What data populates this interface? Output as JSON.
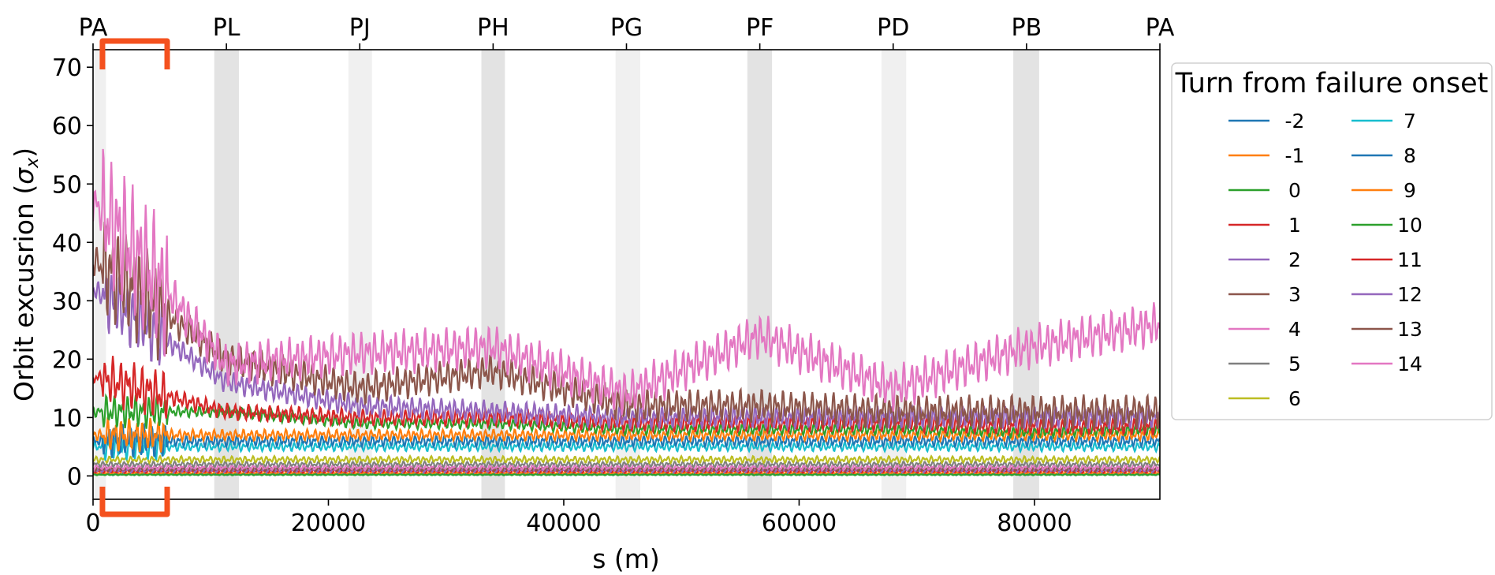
{
  "chart_data": {
    "type": "line",
    "xlabel": "s (m)",
    "ylabel": "Orbit excusrion (σx)",
    "ylabel_main": "Orbit excusrion (",
    "ylabel_symbol": "σ",
    "ylabel_sub": "x",
    "ylabel_close": ")",
    "xlim": [
      0,
      90658
    ],
    "ylim": [
      -4,
      73
    ],
    "x_ticks": [
      0,
      20000,
      40000,
      60000,
      80000
    ],
    "x_tick_labels": [
      "0",
      "20000",
      "40000",
      "60000",
      "80000"
    ],
    "y_ticks": [
      0,
      10,
      20,
      30,
      40,
      50,
      60,
      70
    ],
    "y_tick_labels": [
      "0",
      "10",
      "20",
      "30",
      "40",
      "50",
      "60",
      "70"
    ],
    "top_axis": {
      "ticks": [
        0,
        11333,
        22665,
        33997,
        45329,
        56661,
        67993,
        79325,
        90658
      ],
      "labels": [
        "PA",
        "PL",
        "PJ",
        "PH",
        "PG",
        "PF",
        "PD",
        "PB",
        "PA"
      ]
    },
    "shaded_regions": [
      {
        "x": [
          0,
          1100
        ],
        "shade": "light"
      },
      {
        "x": [
          10300,
          12400
        ],
        "shade": "dark"
      },
      {
        "x": [
          21700,
          23700
        ],
        "shade": "light"
      },
      {
        "x": [
          33000,
          35000
        ],
        "shade": "dark"
      },
      {
        "x": [
          44400,
          46500
        ],
        "shade": "light"
      },
      {
        "x": [
          55600,
          57700
        ],
        "shade": "dark"
      },
      {
        "x": [
          67000,
          69100
        ],
        "shade": "light"
      },
      {
        "x": [
          78200,
          80400
        ],
        "shade": "dark"
      }
    ],
    "highlight_bracket": {
      "x": [
        800,
        6300
      ],
      "color": "#f4511e"
    },
    "legend": {
      "title": "Turn from failure onset",
      "placement": "outside-right",
      "columns": 2
    },
    "series": [
      {
        "name": "-2",
        "color": "#1f77b4",
        "level": [
          0.3,
          0.3,
          0.3,
          0.3,
          0.3,
          0.3,
          0.3,
          0.3,
          0.3
        ],
        "amp": 0.2
      },
      {
        "name": "-1",
        "color": "#ff7f0e",
        "level": [
          0.5,
          0.5,
          0.5,
          0.5,
          0.5,
          0.5,
          0.5,
          0.5,
          0.5
        ],
        "amp": 0.2
      },
      {
        "name": "0",
        "color": "#2ca02c",
        "level": [
          0.2,
          0.2,
          0.2,
          0.2,
          0.2,
          0.2,
          0.2,
          0.2,
          0.2
        ],
        "amp": 0.1
      },
      {
        "name": "1",
        "color": "#d62728",
        "level": [
          0.8,
          0.8,
          0.8,
          0.8,
          0.8,
          0.8,
          0.8,
          0.8,
          0.8
        ],
        "amp": 0.3
      },
      {
        "name": "2",
        "color": "#9467bd",
        "level": [
          1.0,
          1.0,
          1.0,
          1.0,
          1.0,
          1.0,
          1.0,
          1.0,
          1.0
        ],
        "amp": 0.4
      },
      {
        "name": "3",
        "color": "#8c564b",
        "level": [
          1.2,
          1.2,
          1.2,
          1.2,
          1.2,
          1.2,
          1.2,
          1.2,
          1.2
        ],
        "amp": 0.4
      },
      {
        "name": "4",
        "color": "#e377c2",
        "level": [
          1.5,
          1.5,
          1.5,
          1.5,
          1.5,
          1.5,
          1.5,
          1.5,
          1.5
        ],
        "amp": 0.5
      },
      {
        "name": "5",
        "color": "#7f7f7f",
        "level": [
          2.0,
          2.0,
          2.0,
          2.0,
          2.0,
          2.0,
          2.0,
          2.0,
          2.0
        ],
        "amp": 0.5
      },
      {
        "name": "6",
        "color": "#bcbd22",
        "level": [
          2.8,
          2.8,
          2.8,
          2.8,
          2.8,
          2.8,
          2.8,
          2.8,
          2.8
        ],
        "amp": 0.6
      },
      {
        "name": "7",
        "color": "#17becf",
        "level": [
          5,
          5,
          5,
          5,
          5,
          5,
          5,
          5,
          5
        ],
        "amp": 0.8
      },
      {
        "name": "8",
        "color": "#1f77b4",
        "level": [
          6,
          6,
          6,
          6,
          6,
          6,
          6,
          6,
          6
        ],
        "amp": 1.0
      },
      {
        "name": "9",
        "color": "#ff7f0e",
        "level": [
          7,
          7,
          7,
          7,
          7,
          7,
          7,
          7,
          7
        ],
        "amp": 1.0
      },
      {
        "name": "10",
        "color": "#2ca02c",
        "level": [
          11,
          11,
          9,
          9,
          8,
          8,
          8,
          7.5,
          8
        ],
        "amp": 1.0
      },
      {
        "name": "11",
        "color": "#d62728",
        "level": [
          17,
          11,
          10,
          10,
          9,
          9,
          9,
          8.5,
          8.5
        ],
        "amp": 1.5
      },
      {
        "name": "12",
        "color": "#9467bd",
        "level": [
          32,
          16,
          12,
          11,
          10,
          10,
          10,
          10,
          10
        ],
        "amp": 2.0
      },
      {
        "name": "13",
        "color": "#8c564b",
        "level": [
          37,
          20,
          15,
          18,
          12,
          12,
          11,
          11,
          11
        ],
        "amp": 3.0
      },
      {
        "name": "14",
        "color": "#e377c2",
        "level": [
          47,
          19,
          21,
          22,
          14,
          24,
          15,
          22,
          26
        ],
        "amp": 4.0
      }
    ]
  }
}
